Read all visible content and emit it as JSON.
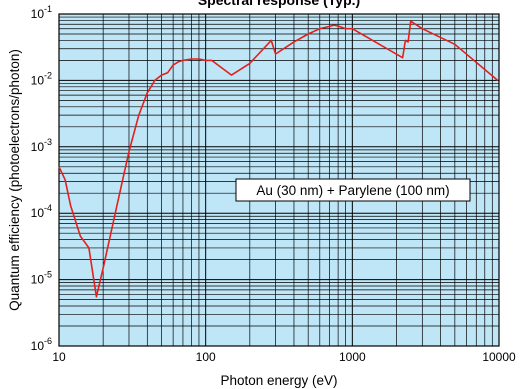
{
  "chart_data": {
    "type": "line",
    "title": "Spectral response (Typ.)",
    "xlabel": "Photon energy (eV)",
    "ylabel": "Quantum efficiency (photoelectrons/photon)",
    "x_scale": "log",
    "y_scale": "log",
    "xlim": [
      10,
      10000
    ],
    "ylim": [
      1e-06,
      0.1
    ],
    "x_ticks": [
      {
        "value": 10,
        "label": "10"
      },
      {
        "value": 100,
        "label": "100"
      },
      {
        "value": 1000,
        "label": "1000"
      },
      {
        "value": 10000,
        "label": "10000"
      }
    ],
    "y_ticks": [
      {
        "value": 1e-06,
        "base": "10",
        "exp": "-6"
      },
      {
        "value": 1e-05,
        "base": "10",
        "exp": "-5"
      },
      {
        "value": 0.0001,
        "base": "10",
        "exp": "-4"
      },
      {
        "value": 0.001,
        "base": "10",
        "exp": "-3"
      },
      {
        "value": 0.01,
        "base": "10",
        "exp": "-2"
      },
      {
        "value": 0.1,
        "base": "10",
        "exp": "-1"
      }
    ],
    "grid": true,
    "annotation": "Au (30 nm) + Parylene (100 nm)",
    "colors": {
      "plot_background": "#bfe6f7",
      "line": "#e3201b",
      "grid": "#000000"
    },
    "series": [
      {
        "x": [
          10,
          11,
          12,
          14,
          16,
          18,
          20,
          25,
          30,
          35,
          40,
          45,
          50,
          55,
          60,
          65,
          70,
          80,
          90,
          100,
          110,
          150,
          200,
          280,
          300,
          400,
          500,
          600,
          700,
          750,
          800,
          900,
          1000,
          2200,
          2300,
          2400,
          2500,
          3000,
          5000,
          9800
        ],
        "y": [
          0.0005,
          0.00032,
          0.00013,
          4.5e-05,
          3e-05,
          5.5e-06,
          1.5e-05,
          0.00014,
          0.00085,
          0.003,
          0.0065,
          0.01,
          0.012,
          0.013,
          0.017,
          0.019,
          0.02,
          0.021,
          0.021,
          0.02,
          0.02,
          0.012,
          0.018,
          0.04,
          0.025,
          0.038,
          0.05,
          0.06,
          0.065,
          0.068,
          0.066,
          0.06,
          0.06,
          0.022,
          0.04,
          0.038,
          0.078,
          0.06,
          0.035,
          0.01
        ]
      }
    ]
  }
}
